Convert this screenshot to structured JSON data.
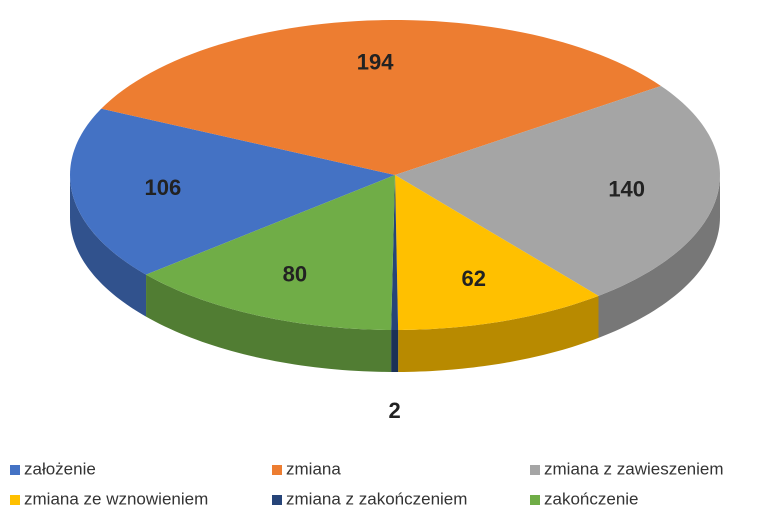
{
  "chart_data": {
    "type": "pie",
    "categories": [
      "założenie",
      "zmiana",
      "zmiana z zawieszeniem",
      "zmiana ze wznowieniem",
      "zmiana z zakończeniem",
      "zakończenie"
    ],
    "values": [
      106,
      194,
      140,
      62,
      2,
      80
    ],
    "colors": [
      "#4472c4",
      "#ed7d31",
      "#a5a5a5",
      "#ffc000",
      "#264478",
      "#70ad47"
    ],
    "legend": "bottom"
  }
}
